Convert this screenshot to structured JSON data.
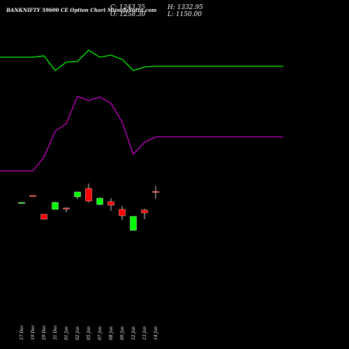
{
  "header": {
    "title": "BANKNIFTY 59600  CE Option  Chart MunafaSutra.com",
    "close_label": "C: 1243.35",
    "open_label": "O: 1258.30",
    "high_label": "H: 1332.95",
    "low_label": "L: 1150.00"
  },
  "colors": {
    "background": "#000000",
    "up": "#00ff00",
    "down": "#ff0000",
    "upper_line": "#00ff00",
    "lower_line": "#cc00cc"
  },
  "chart_data": {
    "type": "candlestick",
    "categories": [
      "17 Dec",
      "19 Dec",
      "29 Dec",
      "31 Dec",
      "01 Jan",
      "02 Jan",
      "05 Jan",
      "07 Jan",
      "08 Jan",
      "09 Jan",
      "12 Jan",
      "13 Jan",
      "14 Jan"
    ],
    "candles": [
      {
        "date": "17 Dec",
        "open": 1100,
        "high": 1100,
        "low": 1100,
        "close": 1100,
        "color": "up"
      },
      {
        "date": "19 Dec",
        "open": 1200,
        "high": 1200,
        "low": 1200,
        "close": 1200,
        "color": "down"
      },
      {
        "date": "29 Dec",
        "open": 930,
        "high": 930,
        "low": 860,
        "close": 860,
        "color": "down"
      },
      {
        "date": "31 Dec",
        "open": 1000,
        "high": 1110,
        "low": 1000,
        "close": 1100,
        "color": "up"
      },
      {
        "date": "01 Jan",
        "open": 1020,
        "high": 1030,
        "low": 960,
        "close": 1010,
        "color": "down"
      },
      {
        "date": "02 Jan",
        "open": 1180,
        "high": 1250,
        "low": 1150,
        "close": 1250,
        "color": "up"
      },
      {
        "date": "05 Jan",
        "open": 1300,
        "high": 1370,
        "low": 1100,
        "close": 1120,
        "color": "down"
      },
      {
        "date": "07 Jan",
        "open": 1070,
        "high": 1170,
        "low": 1060,
        "close": 1160,
        "color": "up"
      },
      {
        "date": "08 Jan",
        "open": 1110,
        "high": 1160,
        "low": 980,
        "close": 1060,
        "color": "down"
      },
      {
        "date": "09 Jan",
        "open": 1000,
        "high": 1050,
        "low": 850,
        "close": 910,
        "color": "down"
      },
      {
        "date": "12 Jan",
        "open": 900,
        "high": 900,
        "low": 700,
        "close": 700,
        "color": "up"
      },
      {
        "date": "13 Jan",
        "open": 990,
        "high": 1010,
        "low": 860,
        "close": 950,
        "color": "down"
      },
      {
        "date": "14 Jan",
        "open": 1258.3,
        "high": 1332.95,
        "low": 1150.0,
        "close": 1243.35,
        "color": "down"
      }
    ],
    "lines": [
      {
        "color": "upper_line",
        "values": [
          3180,
          3180,
          3200,
          2990,
          3110,
          3120,
          3280,
          3180,
          3210,
          3150,
          2990,
          3040,
          3050
        ]
      },
      {
        "color": "lower_line",
        "values": [
          1550,
          1550,
          1750,
          2120,
          2230,
          2620,
          2560,
          2610,
          2520,
          2250,
          1790,
          1960,
          2040
        ]
      }
    ],
    "ylim": [
      0,
      4000
    ],
    "grid": false,
    "legend": "none"
  }
}
